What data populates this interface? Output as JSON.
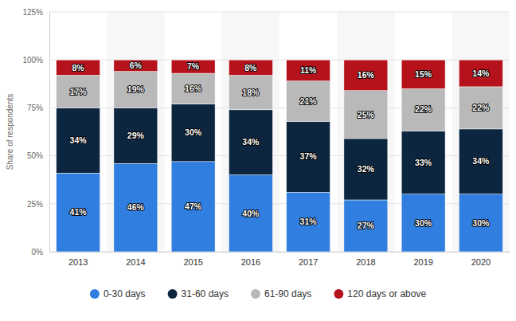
{
  "chart_data": {
    "type": "bar",
    "stacked": true,
    "data_labels": true,
    "grid": true,
    "legend": "bottom",
    "y_label": "Share of respondents",
    "categories": [
      "2013",
      "2014",
      "2015",
      "2016",
      "2017",
      "2018",
      "2019",
      "2020"
    ],
    "ylim": [
      0,
      125
    ],
    "yticks": [
      {
        "value": 0,
        "label": "0%"
      },
      {
        "value": 25,
        "label": "25%"
      },
      {
        "value": 50,
        "label": "50%"
      },
      {
        "value": 75,
        "label": "75%"
      },
      {
        "value": 100,
        "label": "100%"
      },
      {
        "value": 125,
        "label": "125%"
      }
    ],
    "series": [
      {
        "name": "0-30 days",
        "color": "#2f7ee0",
        "values": [
          41,
          46,
          47,
          40,
          31,
          27,
          30,
          30
        ],
        "value_labels": [
          "41%",
          "46%",
          "47%",
          "40%",
          "31%",
          "27%",
          "30%",
          "30%"
        ]
      },
      {
        "name": "31-60 days",
        "color": "#0d2640",
        "values": [
          34,
          29,
          30,
          34,
          37,
          32,
          33,
          34
        ],
        "value_labels": [
          "34%",
          "29%",
          "30%",
          "34%",
          "37%",
          "32%",
          "33%",
          "34%"
        ]
      },
      {
        "name": "61-90 days",
        "color": "#b9b9b9",
        "values": [
          17,
          19,
          16,
          18,
          21,
          25,
          22,
          22
        ],
        "value_labels": [
          "17%",
          "19%",
          "16%",
          "18%",
          "21%",
          "25%",
          "22%",
          "22%"
        ]
      },
      {
        "name": "120 days or above",
        "color": "#b5121b",
        "values": [
          8,
          6,
          7,
          8,
          11,
          16,
          15,
          14
        ],
        "value_labels": [
          "8%",
          "6%",
          "7%",
          "8%",
          "11%",
          "16%",
          "15%",
          "14%"
        ]
      }
    ]
  }
}
